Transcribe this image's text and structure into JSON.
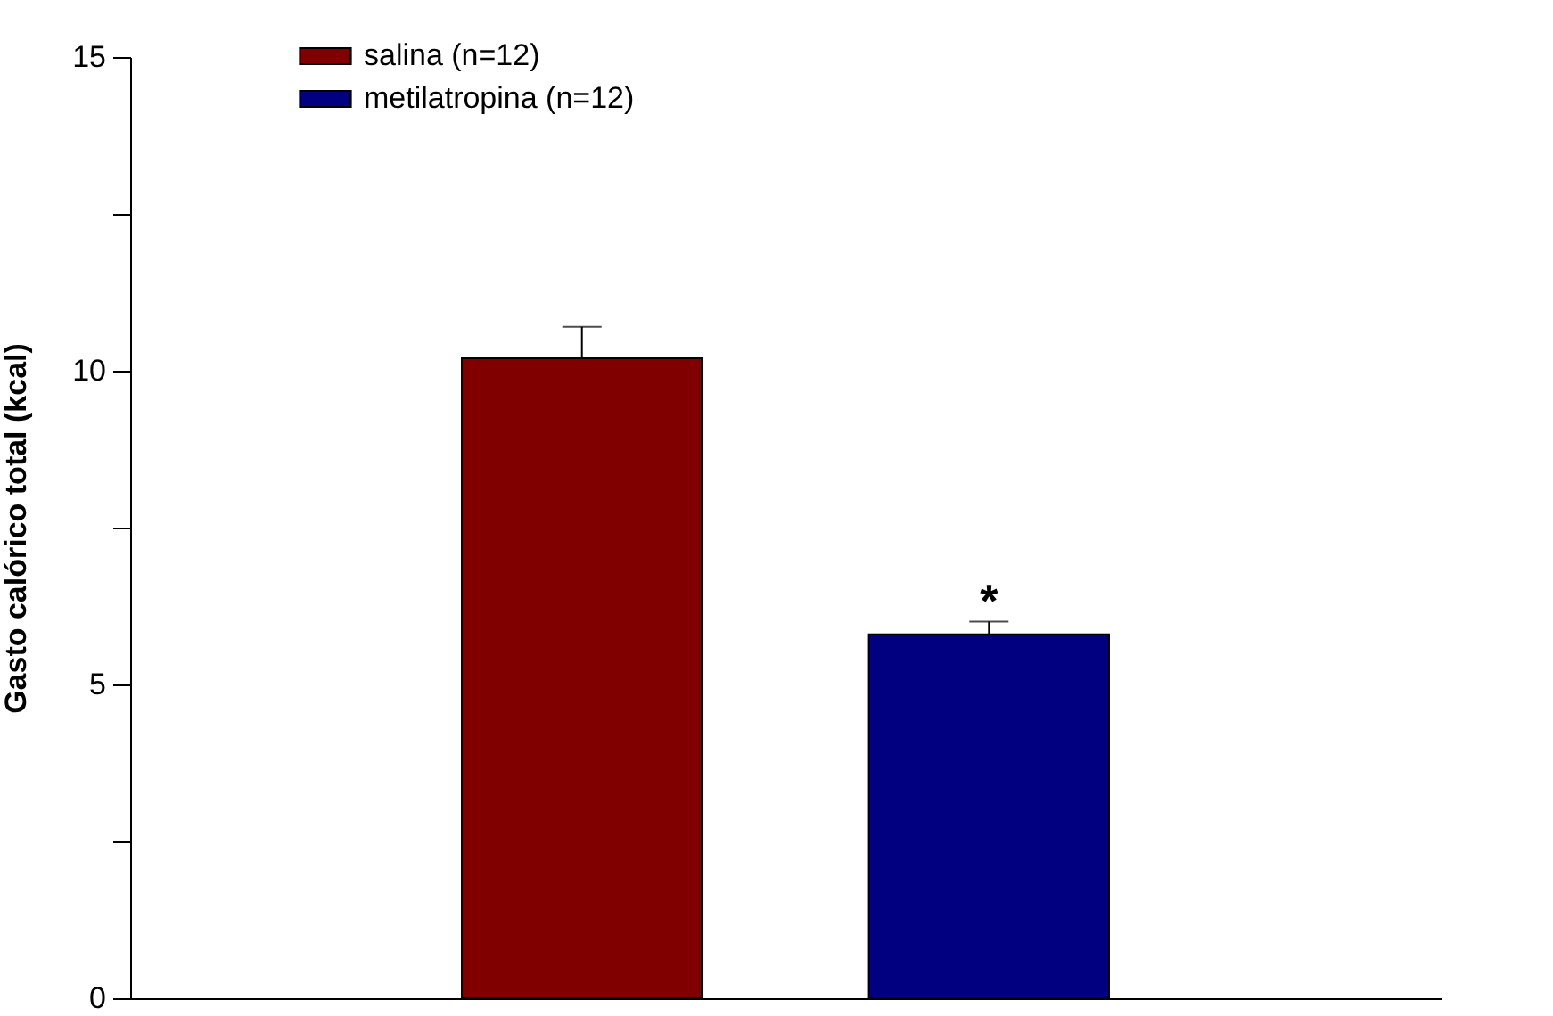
{
  "chart_data": {
    "type": "bar",
    "ylabel": "Gasto calórico total (kcal)",
    "categories": [
      null
    ],
    "series": [
      {
        "name": "salina (n=12)",
        "color": "#800000",
        "values": [
          10.2
        ],
        "errors": [
          0.5
        ]
      },
      {
        "name": "metilatropina (n=12)",
        "color": "#000080",
        "values": [
          5.8
        ],
        "errors": [
          0.2
        ]
      }
    ],
    "ylim": [
      0,
      15
    ],
    "yticks": [
      0,
      {
        "value": 2.5,
        "label": null
      },
      5,
      {
        "value": 7.5,
        "label": null
      },
      10,
      {
        "value": 12.5,
        "label": null
      },
      15
    ],
    "annotations": [
      "*"
    ],
    "grid": false,
    "legend": "top left",
    "tick_labels": "y"
  }
}
